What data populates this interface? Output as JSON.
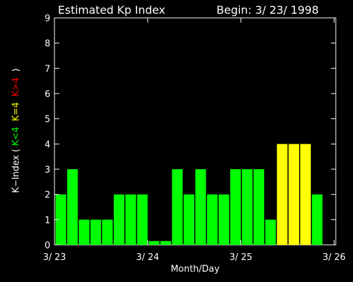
{
  "chart_data": {
    "type": "bar",
    "title": "Estimated Kp Index",
    "subtitle": "Begin: 3/ 23/ 1998",
    "xlabel": "Month/Day",
    "ylabel": {
      "prefix": "K−Index (",
      "green": "K<4",
      "yellow": "K=4",
      "red": "K>4",
      "suffix": ")"
    },
    "ylim": [
      0,
      9
    ],
    "yticks": [
      0,
      1,
      2,
      3,
      4,
      5,
      6,
      7,
      8,
      9
    ],
    "xlim": [
      0,
      25
    ],
    "xticks": [
      {
        "x": 0,
        "label": "3/ 23"
      },
      {
        "x": 8,
        "label": "3/ 24"
      },
      {
        "x": 16,
        "label": "3/ 25"
      },
      {
        "x": 24,
        "label": "3/ 26"
      }
    ],
    "values": [
      2,
      3,
      1,
      1,
      1,
      2,
      2,
      2,
      0.15,
      0.15,
      3,
      2,
      3,
      2,
      2,
      3,
      3,
      3,
      1,
      4,
      4,
      4,
      2
    ],
    "grid": false,
    "colors": {
      "background": "#000000",
      "axes": "#ffffff",
      "low": "#00ff00",
      "equal": "#ffff00",
      "high": "#ff0000"
    }
  }
}
